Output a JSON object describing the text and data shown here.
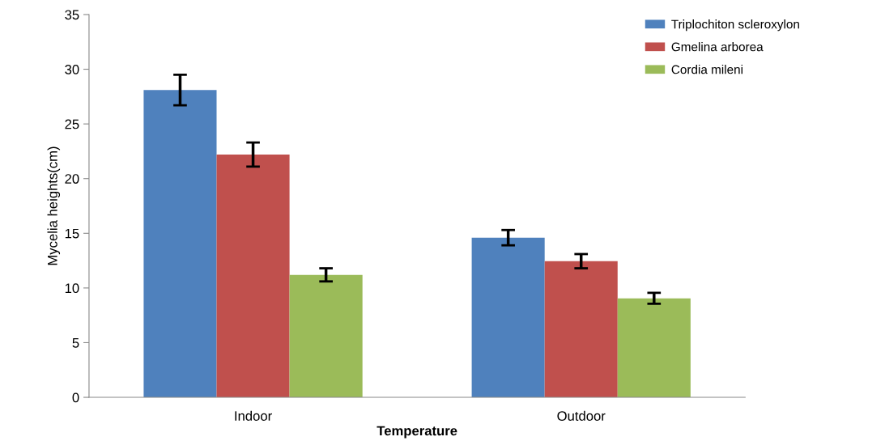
{
  "chart_data": {
    "type": "bar",
    "xlabel": "Temperature",
    "ylabel": "Mycelia heights(cm)",
    "categories": [
      "Indoor",
      "Outdoor"
    ],
    "series": [
      {
        "name": "Triplochiton scleroxylon",
        "color": "#4f81bd",
        "values": [
          28.1,
          14.6
        ],
        "errors": [
          1.4,
          0.7
        ]
      },
      {
        "name": "Gmelina arborea",
        "color": "#c0504d",
        "values": [
          22.2,
          12.45
        ],
        "errors": [
          1.1,
          0.65
        ]
      },
      {
        "name": "Cordia mileni",
        "color": "#9bbb59",
        "values": [
          11.2,
          9.05
        ],
        "errors": [
          0.6,
          0.5
        ]
      }
    ],
    "ylim": [
      0,
      35
    ],
    "yticks": [
      0,
      5,
      10,
      15,
      20,
      25,
      30,
      35
    ],
    "grid": false,
    "legend": "top right"
  }
}
